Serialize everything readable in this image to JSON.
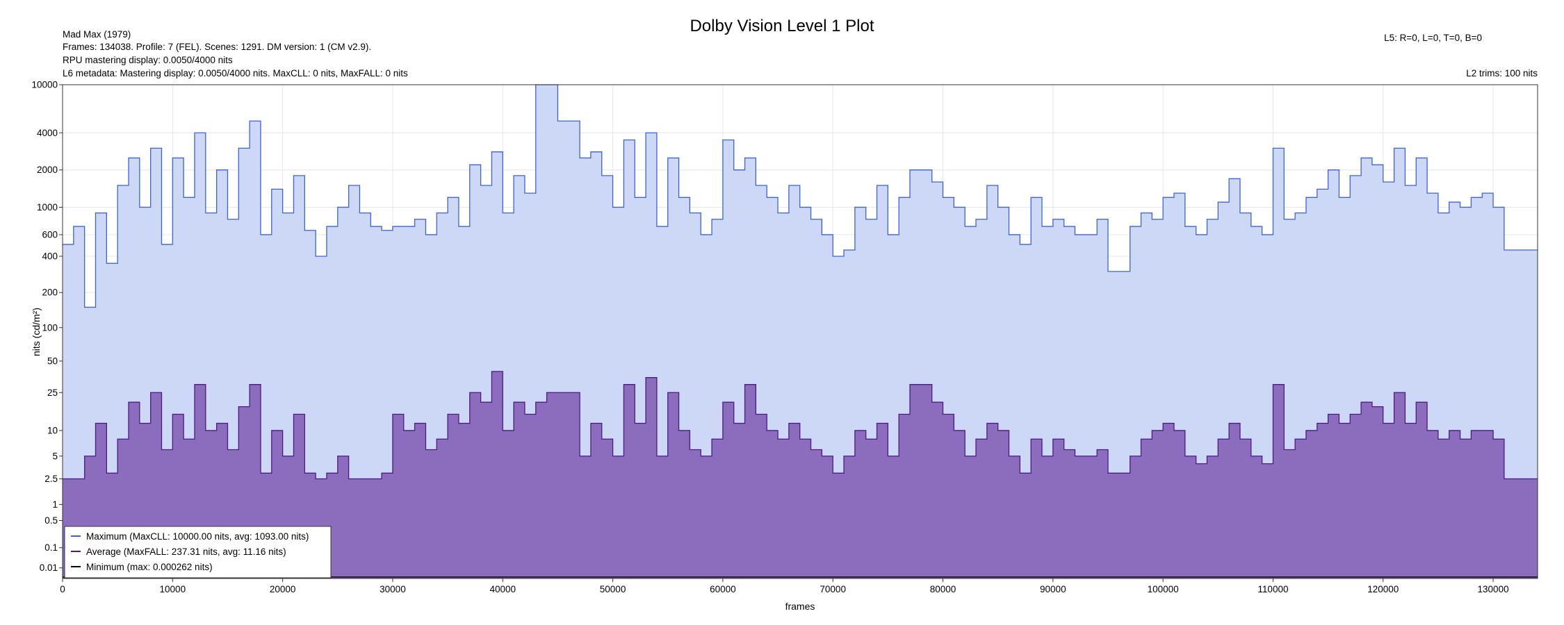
{
  "info": {
    "title": "Dolby Vision Level 1 Plot",
    "line1": "Mad Max (1979)",
    "line2": "Frames: 134038. Profile: 7 (FEL). Scenes: 1291. DM version: 1 (CM v2.9).",
    "line3": "RPU mastering display: 0.0050/4000 nits",
    "line4": "L6 metadata: Mastering display: 0.0050/4000 nits. MaxCLL: 0 nits, MaxFALL: 0 nits",
    "l5": "L5: R=0, L=0, T=0, B=0",
    "l2": "L2 trims: 100 nits"
  },
  "colors": {
    "max_line": "#3b63d6",
    "max_fill": "#cdd8f6",
    "avg_line": "#4a1a86",
    "avg_fill": "#8c6cbc",
    "min_line": "#000000",
    "grid": "#e6e6e6"
  },
  "chart_data": {
    "type": "area",
    "title": "Dolby Vision Level 1 Plot",
    "xlabel": "frames",
    "ylabel": "nits (cd/m²)",
    "y_scale": "log (PQ-like)",
    "xlim": [
      0,
      134038
    ],
    "ylim": [
      0,
      10000
    ],
    "x_ticks": [
      0,
      10000,
      20000,
      30000,
      40000,
      50000,
      60000,
      70000,
      80000,
      90000,
      100000,
      110000,
      120000,
      130000
    ],
    "y_ticks": [
      {
        "v": 0.01,
        "label": "0.01"
      },
      {
        "v": 0.1,
        "label": "0.1"
      },
      {
        "v": 0.5,
        "label": "0.5"
      },
      {
        "v": 1,
        "label": "1"
      },
      {
        "v": 2.5,
        "label": "2.5"
      },
      {
        "v": 5,
        "label": "5"
      },
      {
        "v": 10,
        "label": "10"
      },
      {
        "v": 25,
        "label": "25"
      },
      {
        "v": 50,
        "label": "50"
      },
      {
        "v": 100,
        "label": "100"
      },
      {
        "v": 200,
        "label": "200"
      },
      {
        "v": 400,
        "label": "400"
      },
      {
        "v": 600,
        "label": "600"
      },
      {
        "v": 1000,
        "label": "1000"
      },
      {
        "v": 2000,
        "label": "2000"
      },
      {
        "v": 4000,
        "label": "4000"
      },
      {
        "v": 10000,
        "label": "10000"
      }
    ],
    "legend_position": "bottom-left",
    "grid": true,
    "series": [
      {
        "name": "Maximum (MaxCLL: 10000.00 nits, avg: 1093.00 nits)",
        "x": [
          0,
          1000,
          2000,
          3000,
          4000,
          5000,
          6000,
          7000,
          8000,
          9000,
          10000,
          11000,
          12000,
          13000,
          14000,
          15000,
          16000,
          17000,
          18000,
          19000,
          20000,
          21000,
          22000,
          23000,
          24000,
          25000,
          26000,
          27000,
          28000,
          29000,
          30000,
          31000,
          32000,
          33000,
          34000,
          35000,
          36000,
          37000,
          38000,
          39000,
          40000,
          41000,
          42000,
          43000,
          44000,
          45000,
          46000,
          47000,
          48000,
          49000,
          50000,
          51000,
          52000,
          53000,
          54000,
          55000,
          56000,
          57000,
          58000,
          59000,
          60000,
          61000,
          62000,
          63000,
          64000,
          65000,
          66000,
          67000,
          68000,
          69000,
          70000,
          71000,
          72000,
          73000,
          74000,
          75000,
          76000,
          77000,
          78000,
          79000,
          80000,
          81000,
          82000,
          83000,
          84000,
          85000,
          86000,
          87000,
          88000,
          89000,
          90000,
          91000,
          92000,
          93000,
          94000,
          95000,
          96000,
          97000,
          98000,
          99000,
          100000,
          101000,
          102000,
          103000,
          104000,
          105000,
          106000,
          107000,
          108000,
          109000,
          110000,
          111000,
          112000,
          113000,
          114000,
          115000,
          116000,
          117000,
          118000,
          119000,
          120000,
          121000,
          122000,
          123000,
          124000,
          125000,
          126000,
          127000,
          128000,
          129000,
          130000,
          131000,
          132000,
          133000,
          134038
        ],
        "values": [
          500,
          700,
          150,
          900,
          350,
          1500,
          2500,
          1000,
          3000,
          500,
          2500,
          1200,
          4000,
          900,
          2000,
          800,
          3000,
          5000,
          600,
          1400,
          900,
          1800,
          650,
          400,
          700,
          1000,
          1500,
          900,
          700,
          650,
          700,
          700,
          800,
          600,
          900,
          1200,
          700,
          2200,
          1500,
          2800,
          900,
          1800,
          1300,
          10000,
          10000,
          5000,
          5000,
          2500,
          2800,
          1800,
          1000,
          3500,
          1200,
          4000,
          700,
          2500,
          1200,
          900,
          600,
          800,
          3500,
          2000,
          2500,
          1500,
          1200,
          900,
          1500,
          1000,
          800,
          600,
          400,
          450,
          1000,
          800,
          1500,
          600,
          1200,
          2000,
          2000,
          1600,
          1200,
          1000,
          700,
          800,
          1500,
          1000,
          600,
          500,
          1200,
          700,
          800,
          700,
          600,
          600,
          800,
          300,
          300,
          700,
          900,
          800,
          1200,
          1300,
          700,
          600,
          800,
          1100,
          1700,
          900,
          700,
          600,
          3000,
          800,
          900,
          1200,
          1400,
          2000,
          1200,
          1800,
          2500,
          2200,
          1600,
          3000,
          1500,
          2500,
          1300,
          900,
          1100,
          1000,
          1200,
          1300,
          1000,
          450,
          450,
          450,
          450
        ]
      },
      {
        "name": "Average (MaxFALL: 237.31 nits, avg: 11.16 nits)",
        "x": [
          0,
          1000,
          2000,
          3000,
          4000,
          5000,
          6000,
          7000,
          8000,
          9000,
          10000,
          11000,
          12000,
          13000,
          14000,
          15000,
          16000,
          17000,
          18000,
          19000,
          20000,
          21000,
          22000,
          23000,
          24000,
          25000,
          26000,
          27000,
          28000,
          29000,
          30000,
          31000,
          32000,
          33000,
          34000,
          35000,
          36000,
          37000,
          38000,
          39000,
          40000,
          41000,
          42000,
          43000,
          44000,
          45000,
          46000,
          47000,
          48000,
          49000,
          50000,
          51000,
          52000,
          53000,
          54000,
          55000,
          56000,
          57000,
          58000,
          59000,
          60000,
          61000,
          62000,
          63000,
          64000,
          65000,
          66000,
          67000,
          68000,
          69000,
          70000,
          71000,
          72000,
          73000,
          74000,
          75000,
          76000,
          77000,
          78000,
          79000,
          80000,
          81000,
          82000,
          83000,
          84000,
          85000,
          86000,
          87000,
          88000,
          89000,
          90000,
          91000,
          92000,
          93000,
          94000,
          95000,
          96000,
          97000,
          98000,
          99000,
          100000,
          101000,
          102000,
          103000,
          104000,
          105000,
          106000,
          107000,
          108000,
          109000,
          110000,
          111000,
          112000,
          113000,
          114000,
          115000,
          116000,
          117000,
          118000,
          119000,
          120000,
          121000,
          122000,
          123000,
          124000,
          125000,
          126000,
          127000,
          128000,
          129000,
          130000,
          131000,
          132000,
          133000,
          134038
        ],
        "values": [
          2.5,
          2.5,
          5,
          12,
          3,
          8,
          20,
          12,
          25,
          6,
          15,
          8,
          30,
          10,
          12,
          6,
          18,
          30,
          3,
          10,
          5,
          15,
          3,
          2.5,
          3,
          5,
          2.5,
          2.5,
          2.5,
          3,
          15,
          10,
          12,
          6,
          8,
          15,
          12,
          25,
          20,
          40,
          10,
          20,
          15,
          20,
          25,
          25,
          25,
          5,
          12,
          8,
          5,
          30,
          12,
          35,
          5,
          25,
          10,
          6,
          5,
          8,
          20,
          12,
          30,
          15,
          10,
          8,
          12,
          8,
          6,
          5,
          3,
          5,
          10,
          8,
          12,
          5,
          15,
          30,
          30,
          20,
          15,
          10,
          5,
          8,
          12,
          10,
          5,
          3,
          8,
          5,
          8,
          6,
          5,
          5,
          6,
          3,
          3,
          5,
          8,
          10,
          12,
          10,
          5,
          4,
          5,
          8,
          12,
          8,
          5,
          4,
          30,
          6,
          8,
          10,
          12,
          15,
          12,
          15,
          20,
          18,
          12,
          25,
          12,
          20,
          10,
          8,
          10,
          8,
          10,
          10,
          8,
          2.5,
          2.5,
          2.5,
          2.5
        ]
      },
      {
        "name": "Minimum (max: 0.000262 nits)",
        "x": [
          0,
          134038
        ],
        "values": [
          0.000262,
          0.000262
        ]
      }
    ]
  }
}
